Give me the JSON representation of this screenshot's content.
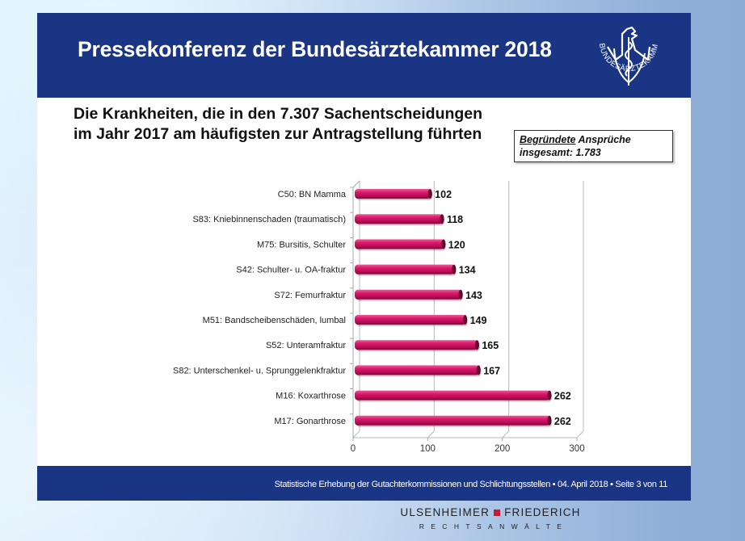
{
  "header": {
    "title": "Pressekonferenz der Bundesärztekammer 2018",
    "logo_text": "BUNDESÄRZTEKAMMER"
  },
  "subtitle": {
    "line1": "Die Krankheiten, die in den 7.307 Sachentscheidungen",
    "line2": "im Jahr 2017 am häufigsten zur Antragstellung führten"
  },
  "note": {
    "underlined": "Begründete",
    "rest_line1": " Ansprüche",
    "line2": "insgesamt: 1.783"
  },
  "footer": {
    "text": "Statistische Erhebung der Gutachterkommissionen und Schlichtungsstellen ▪  04. April 2018 ▪ Seite 3 von 11"
  },
  "firm": {
    "name_left": "ULSENHEIMER",
    "name_right": "FRIEDERICH",
    "subtitle": "RECHTSANWÄLTE"
  },
  "colors": {
    "brand_blue": "#1b3585",
    "bar": "#c8105e",
    "firm_accent": "#c41a3a"
  },
  "chart_data": {
    "type": "bar",
    "orientation": "horizontal",
    "style": "3d",
    "title": "Die Krankheiten, die in den 7.307 Sachentscheidungen im Jahr 2017 am häufigsten zur Antragstellung führten",
    "categories": [
      "C50: BN Mamma",
      "S83: Kniebinnenschaden (traumatisch)",
      "M75: Bursitis, Schulter",
      "S42: Schulter- u. OA-fraktur",
      "S72: Femurfraktur",
      "M51: Bandscheibenschäden, lumbal",
      "S52: Unteramfraktur",
      "S82: Unterschenkel- u. Sprunggelenkfraktur",
      "M16: Koxarthrose",
      "M17: Gonarthrose"
    ],
    "values": [
      102,
      118,
      120,
      134,
      143,
      149,
      165,
      167,
      262,
      262
    ],
    "data_labels": [
      "102",
      "118",
      "120",
      "134",
      "143",
      "149",
      "165",
      "167",
      "262",
      "262"
    ],
    "xlim": [
      0,
      300
    ],
    "xticks": [
      0,
      100,
      200,
      300
    ],
    "xtick_labels": [
      "0",
      "100",
      "200",
      "300"
    ],
    "xlabel": "",
    "ylabel": "",
    "grid": true,
    "legend": "none"
  }
}
